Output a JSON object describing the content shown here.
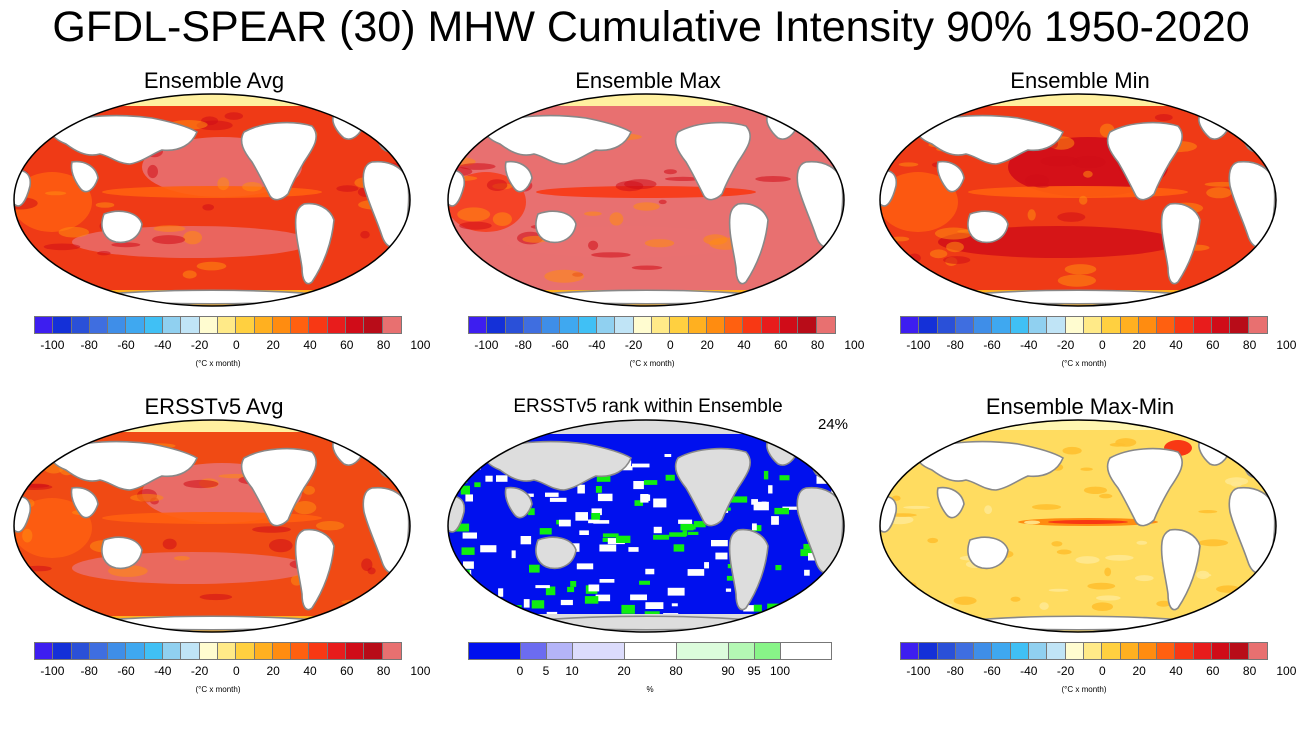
{
  "figure": {
    "title": "GFDL-SPEAR (30) MHW Cumulative Intensity 90% 1950-2020"
  },
  "panels": [
    {
      "id": "ensemble-avg",
      "title": "Ensemble Avg",
      "palette": "intensity",
      "pattern": "avg"
    },
    {
      "id": "ensemble-max",
      "title": "Ensemble Max",
      "palette": "intensity",
      "pattern": "max"
    },
    {
      "id": "ensemble-min",
      "title": "Ensemble Min",
      "palette": "intensity",
      "pattern": "min"
    },
    {
      "id": "ersst-avg",
      "title": "ERSSTv5 Avg",
      "palette": "intensity",
      "pattern": "ersst"
    },
    {
      "id": "ersst-rank",
      "title": "ERSSTv5 rank within Ensemble",
      "palette": "rank",
      "pattern": "rank",
      "corner_label": "24%"
    },
    {
      "id": "ensemble-maxmin",
      "title": "Ensemble Max-Min",
      "palette": "intensity",
      "pattern": "spread"
    }
  ],
  "colorbars": {
    "intensity": {
      "colors": [
        "#3d1ef0",
        "#1430d8",
        "#2a50d8",
        "#3f6ee0",
        "#3f8ee8",
        "#3fa8f0",
        "#40c0f5",
        "#90d0f0",
        "#c0e4f6",
        "#fffcd0",
        "#ffea88",
        "#ffd040",
        "#ffb020",
        "#ff8c10",
        "#ff6010",
        "#f83814",
        "#e81c1c",
        "#d00c18",
        "#b80c18",
        "#e87070"
      ],
      "ticks": [
        "-100",
        "-80",
        "-60",
        "-40",
        "-20",
        "0",
        "20",
        "40",
        "60",
        "80",
        "100"
      ],
      "unit": "(°C x month)"
    },
    "rank": {
      "colors": [
        "#0010ee",
        "#6c6cf0",
        "#b4b4f8",
        "#dcdcfc",
        "#ffffff",
        "#dcfcdc",
        "#b4f8b4",
        "#88f488",
        "#10ee10"
      ],
      "ticks": [
        "0",
        "5",
        "10",
        "20",
        "80",
        "90",
        "95",
        "100"
      ],
      "unit": "%"
    }
  },
  "chart_data": {
    "type": "heatmap",
    "title": "GFDL-SPEAR (30) MHW Cumulative Intensity 90% 1950-2020",
    "projection": "Robinson (global)",
    "panels": [
      {
        "title": "Ensemble Avg",
        "units": "°C x month",
        "range": [
          -100,
          100
        ],
        "dominant_values": "40 to 100, highest in Pacific"
      },
      {
        "title": "Ensemble Max",
        "units": "°C x month",
        "range": [
          -100,
          100
        ],
        "dominant_values": "60 to >100 over most oceans"
      },
      {
        "title": "Ensemble Min",
        "units": "°C x month",
        "range": [
          -100,
          100
        ],
        "dominant_values": "20 to 80"
      },
      {
        "title": "ERSSTv5 Avg",
        "units": "°C x month",
        "range": [
          -100,
          100
        ],
        "dominant_values": "20 to 100"
      },
      {
        "title": "ERSSTv5 rank within Ensemble",
        "units": "%",
        "bins": [
          0,
          5,
          10,
          20,
          80,
          90,
          95,
          100
        ],
        "annotation": "24%"
      },
      {
        "title": "Ensemble Max-Min",
        "units": "°C x month",
        "range": [
          -100,
          100
        ],
        "dominant_values": "0 to 40, max in equatorial Pacific"
      }
    ]
  }
}
